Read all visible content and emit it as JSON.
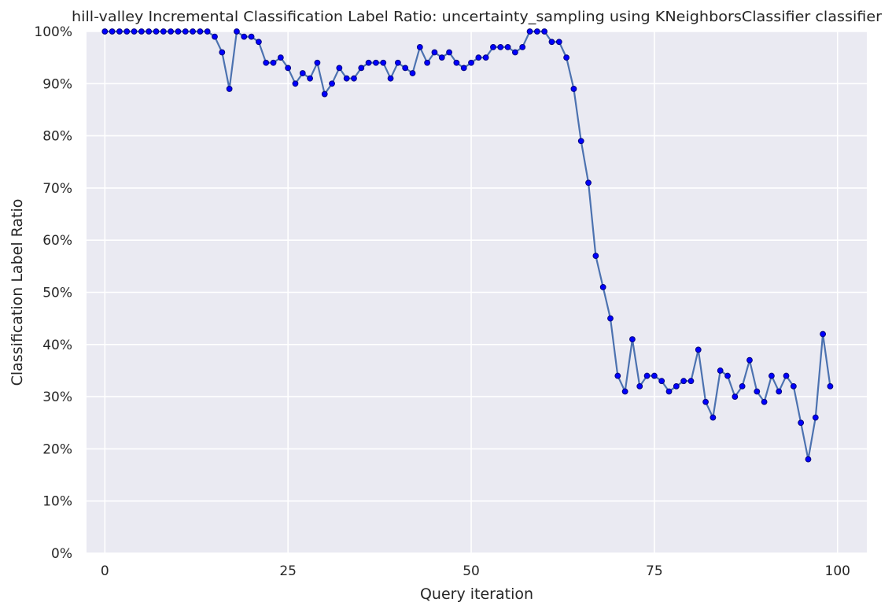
{
  "chart_data": {
    "type": "line",
    "title": "hill-valley Incremental Classification Label Ratio: uncertainty_sampling using KNeighborsClassifier classifier",
    "xlabel": "Query iteration",
    "ylabel": "Classification Label Ratio",
    "xlim": [
      -2.5,
      104
    ],
    "ylim": [
      0,
      100
    ],
    "x_ticks": [
      0,
      25,
      50,
      75,
      100
    ],
    "x_tick_labels": [
      "0",
      "25",
      "50",
      "75",
      "100"
    ],
    "y_ticks": [
      0,
      10,
      20,
      30,
      40,
      50,
      60,
      70,
      80,
      90,
      100
    ],
    "y_tick_labels": [
      "0%",
      "10%",
      "20%",
      "30%",
      "40%",
      "50%",
      "60%",
      "70%",
      "80%",
      "90%",
      "100%"
    ],
    "grid": true,
    "colors": {
      "background": "#eaeaf2",
      "grid": "#ffffff",
      "line": "#4c72b0",
      "marker": "#0000ff",
      "marker_edge": "#000080"
    },
    "series": [
      {
        "x": [
          0,
          1,
          2,
          3,
          4,
          5,
          6,
          7,
          8,
          9,
          10,
          11,
          12,
          13,
          14,
          15,
          16,
          17,
          18,
          19,
          20,
          21,
          22,
          23,
          24,
          25,
          26,
          27,
          28,
          29,
          30,
          31,
          32,
          33,
          34,
          35,
          36,
          37,
          38,
          39,
          40,
          41,
          42,
          43,
          44,
          45,
          46,
          47,
          48,
          49,
          50,
          51,
          52,
          53,
          54,
          55,
          56,
          57,
          58,
          59,
          60,
          61,
          62,
          63,
          64,
          65,
          66,
          67,
          68,
          69,
          70,
          71,
          72,
          73,
          74,
          75,
          76,
          77,
          78,
          79,
          80,
          81,
          82,
          83,
          84,
          85,
          86,
          87,
          88,
          89,
          90,
          91,
          92,
          93,
          94,
          95,
          96,
          97,
          98,
          99
        ],
        "values": [
          100,
          100,
          100,
          100,
          100,
          100,
          100,
          100,
          100,
          100,
          100,
          100,
          100,
          100,
          100,
          99,
          96,
          89,
          100,
          99,
          99,
          98,
          94,
          94,
          95,
          93,
          90,
          92,
          91,
          94,
          88,
          90,
          93,
          91,
          91,
          93,
          94,
          94,
          94,
          91,
          94,
          93,
          92,
          97,
          94,
          96,
          95,
          96,
          94,
          93,
          94,
          95,
          95,
          97,
          97,
          97,
          96,
          97,
          100,
          100,
          100,
          98,
          98,
          95,
          89,
          79,
          71,
          57,
          51,
          45,
          34,
          31,
          41,
          32,
          34,
          34,
          33,
          31,
          32,
          33,
          33,
          39,
          29,
          26,
          35,
          34,
          30,
          32,
          37,
          31,
          29,
          34,
          31,
          34,
          32,
          25,
          18,
          26,
          42,
          32
        ]
      }
    ]
  }
}
